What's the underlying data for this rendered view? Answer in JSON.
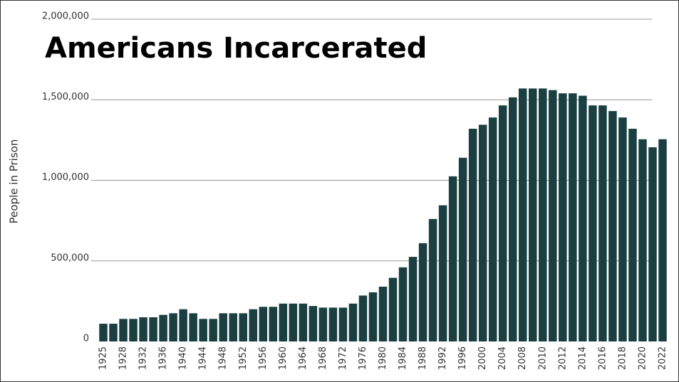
{
  "chart_data": {
    "type": "bar",
    "title": "Americans Incarcerated",
    "y_label": "People in Prison",
    "categories": [
      "1925",
      null,
      "1928",
      null,
      "1932",
      null,
      "1936",
      null,
      "1940",
      null,
      "1944",
      null,
      "1948",
      null,
      "1952",
      null,
      "1956",
      null,
      "1960",
      null,
      "1964",
      null,
      "1968",
      null,
      "1972",
      null,
      "1976",
      null,
      "1980",
      null,
      "1984",
      null,
      "1988",
      null,
      "1992",
      null,
      "1996",
      null,
      "2000",
      null,
      "2004",
      null,
      "2008",
      null,
      "2010",
      null,
      "2012",
      null,
      "2014",
      null,
      "2016",
      null,
      "2018",
      null,
      "2020",
      null,
      "2022"
    ],
    "values": [
      110000,
      110000,
      140000,
      140000,
      150000,
      150000,
      165000,
      175000,
      200000,
      175000,
      140000,
      140000,
      175000,
      175000,
      175000,
      200000,
      215000,
      215000,
      235000,
      235000,
      235000,
      220000,
      210000,
      210000,
      210000,
      235000,
      285000,
      305000,
      340000,
      395000,
      460000,
      525000,
      610000,
      760000,
      845000,
      1025000,
      1140000,
      1320000,
      1345000,
      1390000,
      1465000,
      1515000,
      1570000,
      1570000,
      1570000,
      1560000,
      1540000,
      1540000,
      1525000,
      1465000,
      1465000,
      1430000,
      1390000,
      1320000,
      1255000,
      1205000,
      1255000
    ],
    "color": "#1b3f40",
    "ylim": [
      0,
      2000000
    ],
    "yticks": [
      0,
      {
        "value": 500000,
        "label": "500,000"
      },
      {
        "value": 1000000,
        "label": "1,000,000"
      },
      {
        "value": 1500000,
        "label": "1,500,000"
      },
      {
        "value": 2000000,
        "label": "2,000,000"
      }
    ],
    "grid": true
  }
}
